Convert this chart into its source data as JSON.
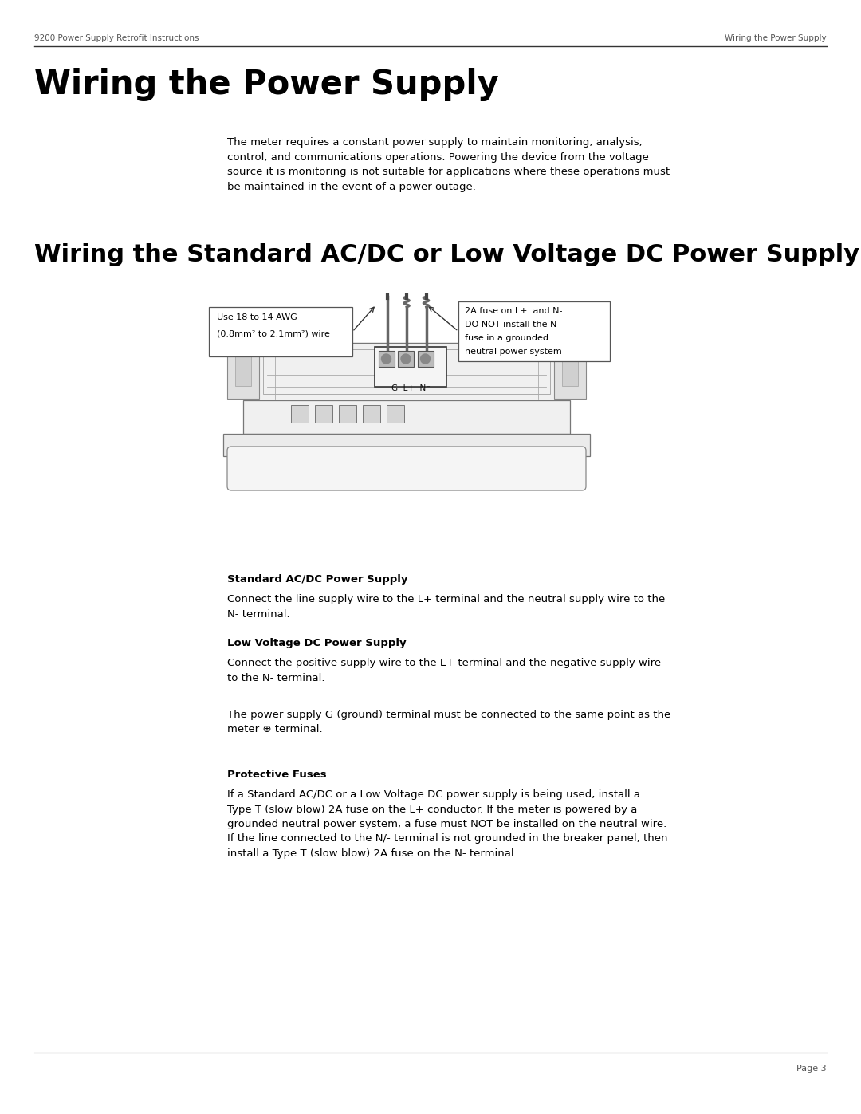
{
  "page_width": 10.8,
  "page_height": 13.97,
  "bg_color": "#ffffff",
  "header_left": "9200 Power Supply Retrofit Instructions",
  "header_right": "Wiring the Power Supply",
  "header_fontsize": 7.5,
  "title1": "Wiring the Power Supply",
  "title1_fontsize": 30,
  "body1_line1": "The meter requires a constant power supply to maintain monitoring, analysis,",
  "body1_line2": "control, and communications operations. Powering the device from the voltage",
  "body1_line3": "source it is monitoring is not suitable for applications where these operations must",
  "body1_line4": "be maintained in the event of a power outage.",
  "body1_fontsize": 9.5,
  "title2": "Wiring the Standard AC/DC or Low Voltage DC Power Supply",
  "title2_fontsize": 22,
  "callout1_line1": "Use 18 to 14 AWG",
  "callout1_line2": "(0.8mm² to 2.1mm²) wire",
  "callout2_line1": "2A fuse on L+  and N-.",
  "callout2_line2": "DO NOT install the N-",
  "callout2_line3": "fuse in a grounded",
  "callout2_line4": "neutral power system",
  "section1_title": "Standard AC/DC Power Supply",
  "section1_body": "Connect the line supply wire to the L+ terminal and the neutral supply wire to the\nN- terminal.",
  "section2_title": "Low Voltage DC Power Supply",
  "section2_body": "Connect the positive supply wire to the L+ terminal and the negative supply wire\nto the N- terminal.",
  "section3_body": "The power supply G (ground) terminal must be connected to the same point as the\nmeter ⊕ terminal.",
  "section4_title": "Protective Fuses",
  "section4_body": "If a Standard AC/DC or a Low Voltage DC power supply is being used, install a\nType T (slow blow) 2A fuse on the L+ conductor. If the meter is powered by a\ngrounded neutral power system, a fuse must NOT be installed on the neutral wire.\nIf the line connected to the N/- terminal is not grounded in the breaker panel, then\ninstall a Type T (slow blow) 2A fuse on the N- terminal.",
  "footer_text": "Page 3",
  "edge_color": "#555555",
  "light_gray": "#e8e8e8",
  "mid_gray": "#cccccc",
  "dark_gray": "#333333",
  "line_color": "#444444"
}
